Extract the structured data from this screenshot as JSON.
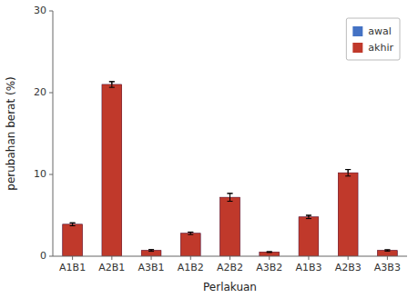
{
  "chart_data": {
    "type": "bar",
    "xlabel": "Perlakuan",
    "ylabel": "perubahan berat (%)",
    "categories": [
      "A1B1",
      "A2B1",
      "A3B1",
      "A1B2",
      "A2B2",
      "A3B2",
      "A1B3",
      "A2B3",
      "A3B3"
    ],
    "series": [
      {
        "name": "awal",
        "color": "#4472C4",
        "values": [
          3.9,
          21.0,
          0.7,
          2.8,
          7.2,
          0.5,
          4.8,
          10.2,
          0.7
        ],
        "errors": [
          0.18,
          0.35,
          0.1,
          0.15,
          0.48,
          0.05,
          0.2,
          0.4,
          0.08
        ]
      },
      {
        "name": "akhir",
        "color": "#C0392B",
        "values": [
          3.9,
          21.0,
          0.7,
          2.8,
          7.2,
          0.5,
          4.8,
          10.2,
          0.7
        ],
        "errors": [
          0.18,
          0.35,
          0.1,
          0.15,
          0.48,
          0.05,
          0.2,
          0.4,
          0.08
        ]
      }
    ],
    "ylim": [
      0,
      30
    ],
    "yticks": [
      0,
      10,
      20,
      30
    ],
    "grid": false,
    "legend": "upper right"
  }
}
